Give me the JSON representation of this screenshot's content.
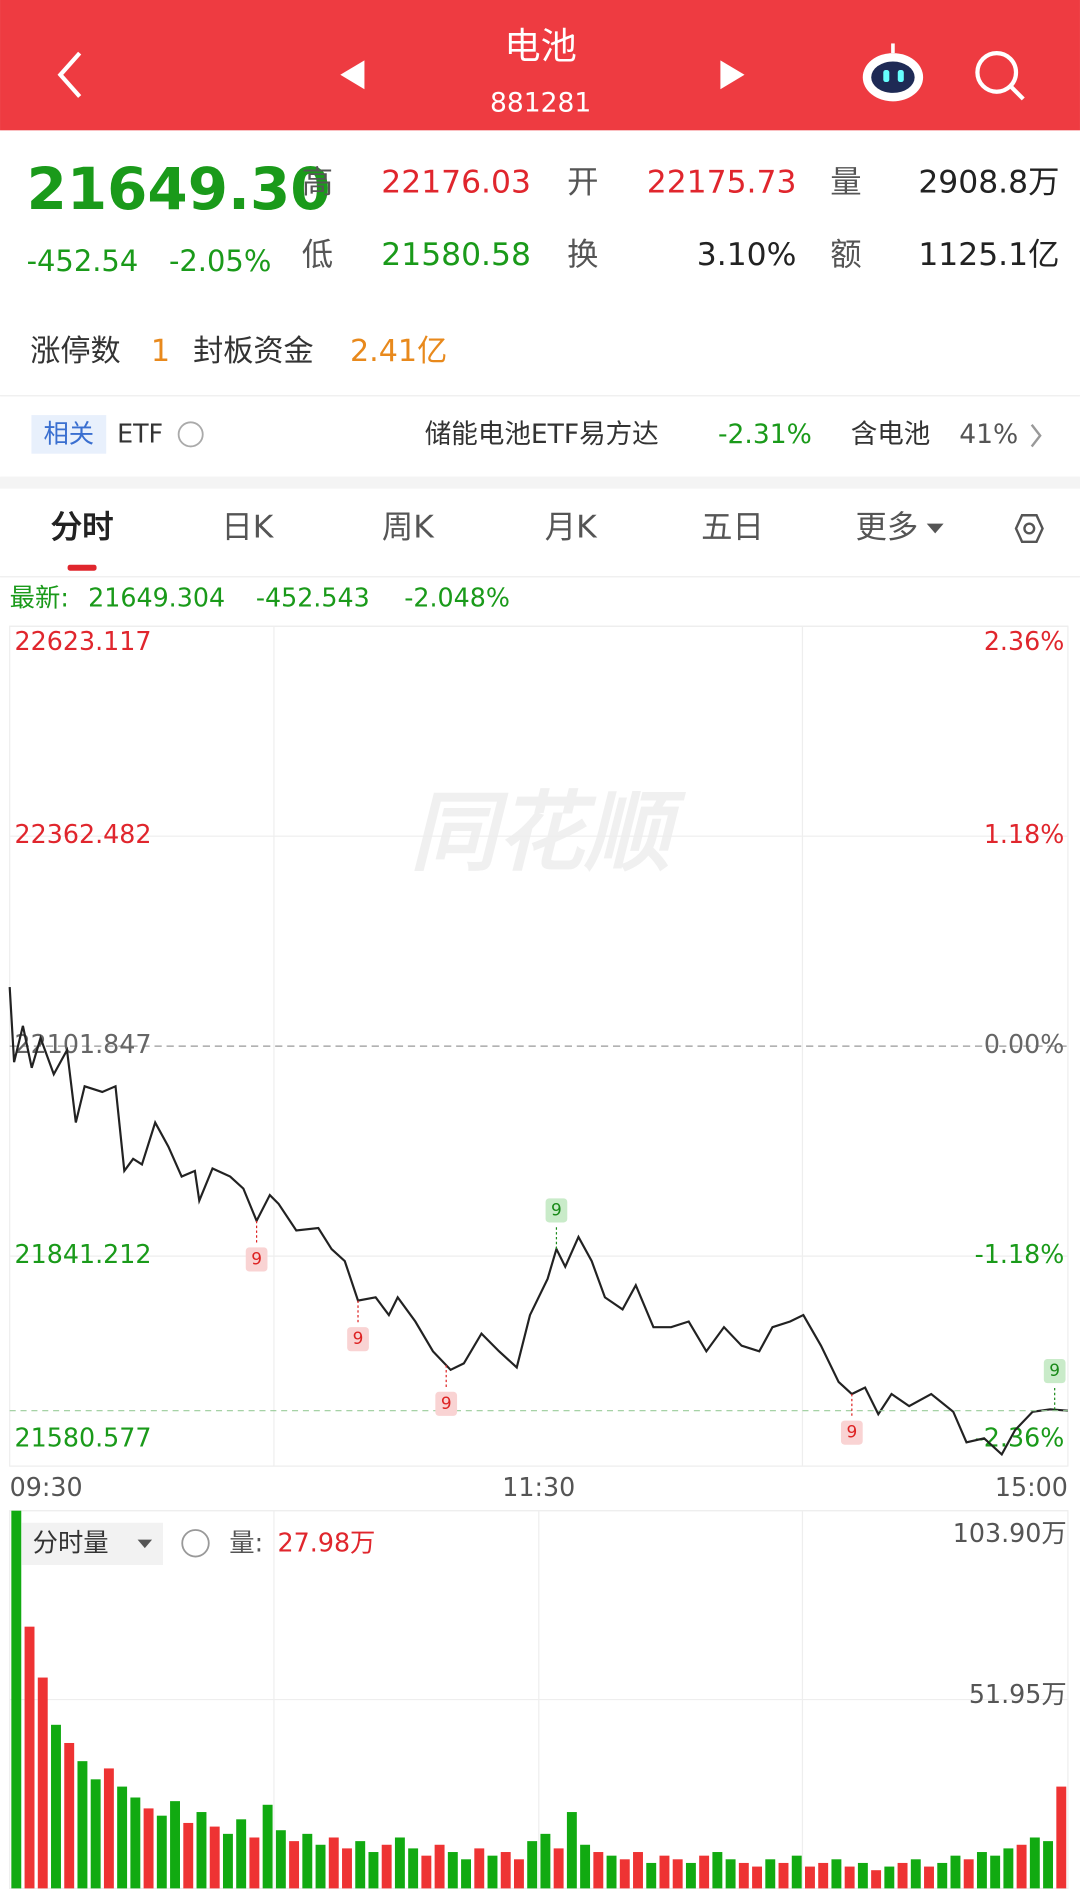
{
  "header": {
    "title": "电池",
    "code": "881281"
  },
  "quote": {
    "price": "21649.30",
    "change": "-452.54",
    "change_pct": "-2.05%",
    "high_label": "高",
    "high": "22176.03",
    "open_label": "开",
    "open": "22175.73",
    "volume_label": "量",
    "volume": "2908.8万",
    "low_label": "低",
    "low": "21580.58",
    "turnover_label": "换",
    "turnover": "3.10%",
    "amount_label": "额",
    "amount": "1125.1亿"
  },
  "limit_up": {
    "count_label": "涨停数",
    "count": "1",
    "funds_label": "封板资金",
    "funds": "2.41亿"
  },
  "etf": {
    "tag": "相关",
    "label": "ETF",
    "name": "储能电池ETF易方达",
    "change": "-2.31%",
    "holding_label": "含电池",
    "holding": "41%"
  },
  "tabs": [
    "分时",
    "日K",
    "周K",
    "月K",
    "五日",
    "更多"
  ],
  "latest": {
    "label": "最新:",
    "price": "21649.304",
    "change": "-452.543",
    "change_pct": "-2.048%"
  },
  "watermark": "同花顺",
  "chart_data": [
    {
      "type": "line",
      "x": [
        0,
        1,
        3,
        5,
        7,
        10,
        13,
        15,
        17,
        21,
        24,
        26,
        28,
        30,
        33,
        36,
        39,
        42,
        43,
        46,
        50,
        53,
        56,
        59,
        61,
        65,
        70,
        73,
        76,
        79,
        83,
        86,
        88,
        92,
        96,
        100,
        103,
        107,
        111,
        115,
        118,
        122,
        124,
        126,
        129,
        132,
        135,
        139,
        142,
        146,
        150,
        154,
        158,
        162,
        166,
        170,
        173,
        177,
        180,
        184,
        188,
        191,
        194,
        197,
        200,
        204,
        209,
        214,
        217,
        221,
        225,
        228,
        232,
        236,
        240
      ],
      "series": [
        {
          "color": "#222222",
          "values": [
            22175.2,
            22082,
            22127,
            22075,
            22112,
            22067,
            22097,
            22007,
            22052,
            22045,
            22052,
            21947,
            21962,
            21955,
            22007,
            21977,
            21940,
            21947,
            21910,
            21950,
            21940,
            21925,
            21885,
            21917,
            21906,
            21873,
            21876,
            21850,
            21835,
            21786,
            21790,
            21768,
            21790,
            21760,
            21723,
            21700,
            21708,
            21745,
            21723,
            21703,
            21768,
            21813,
            21850,
            21828,
            21865,
            21835,
            21790,
            21775,
            21805,
            21753,
            21753,
            21760,
            21723,
            21753,
            21730,
            21723,
            21753,
            21760,
            21768,
            21730,
            21685,
            21670,
            21678,
            21645,
            21670,
            21655,
            21670,
            21648,
            21610,
            21615,
            21595,
            21625,
            21648,
            21651,
            21649.304
          ]
        }
      ],
      "xlim": [
        0,
        240
      ],
      "xticks": [
        {
          "value": 0,
          "label": "09:30"
        },
        {
          "value": 120,
          "label": "11:30"
        },
        {
          "value": 240,
          "label": "15:00"
        }
      ],
      "ylim": [
        21580.577,
        22623.117
      ],
      "yticks": [
        22623.117,
        22362.482,
        22101.847,
        21841.212,
        21580.577
      ],
      "y2lim": [
        -2.36,
        2.36
      ],
      "y2ticks": [
        {
          "value": 2.36,
          "label": "2.36%"
        },
        {
          "value": 1.18,
          "label": "1.18%"
        },
        {
          "value": 0,
          "label": "0.00%"
        },
        {
          "value": -1.18,
          "label": "-1.18%"
        },
        {
          "value": -2.36,
          "label": "-2.36%"
        }
      ],
      "signals": {
        "label": "9",
        "down": [
          56,
          79,
          99,
          191
        ],
        "up": [
          124,
          237
        ]
      }
    },
    {
      "type": "bar",
      "selector": "分时量",
      "volume_label": "量:",
      "volume_value": "27.98万",
      "x": [
        0,
        3,
        6,
        9,
        12,
        15,
        18,
        21,
        24,
        27,
        30,
        33,
        36,
        39,
        42,
        45,
        48,
        51,
        54,
        57,
        60,
        63,
        66,
        69,
        72,
        75,
        78,
        81,
        84,
        87,
        90,
        93,
        96,
        99,
        102,
        105,
        108,
        111,
        114,
        117,
        120,
        123,
        126,
        129,
        132,
        135,
        138,
        141,
        144,
        147,
        150,
        153,
        156,
        159,
        162,
        165,
        168,
        171,
        174,
        177,
        180,
        183,
        186,
        189,
        192,
        195,
        198,
        201,
        204,
        207,
        210,
        213,
        216,
        219,
        222,
        225,
        228,
        231,
        234,
        237
      ],
      "values": [
        103.9,
        72,
        58,
        45,
        40,
        35,
        30,
        33,
        28,
        25,
        22,
        20,
        24,
        18,
        21,
        17,
        15,
        19,
        14,
        23,
        16,
        13,
        15,
        12,
        14,
        11,
        13,
        10,
        12,
        14,
        11,
        9,
        12,
        10,
        8,
        11,
        9,
        10,
        8,
        13,
        15,
        11,
        21,
        12,
        10,
        9,
        8,
        10,
        7,
        9,
        8,
        7,
        9,
        10,
        8,
        7,
        6,
        8,
        7,
        9,
        6,
        7,
        8,
        6,
        7,
        5,
        6,
        7,
        8,
        6,
        7,
        9,
        8,
        10,
        9,
        11,
        12,
        14,
        13,
        28
      ],
      "colors": [
        "#1a1",
        "#e33",
        "#e33",
        "#1a1",
        "#e33",
        "#1a1",
        "#1a1",
        "#e33",
        "#1a1",
        "#1a1",
        "#e33",
        "#1a1",
        "#1a1",
        "#e33",
        "#1a1",
        "#e33",
        "#1a1",
        "#1a1",
        "#e33",
        "#1a1",
        "#1a1",
        "#e33",
        "#1a1",
        "#1a1",
        "#e33",
        "#e33",
        "#1a1",
        "#1a1",
        "#e33",
        "#1a1",
        "#1a1",
        "#e33",
        "#e33",
        "#1a1",
        "#1a1",
        "#e33",
        "#1a1",
        "#e33",
        "#e33",
        "#1a1",
        "#1a1",
        "#e33",
        "#1a1",
        "#1a1",
        "#e33",
        "#1a1",
        "#e33",
        "#e33",
        "#1a1",
        "#e33",
        "#e33",
        "#1a1",
        "#e33",
        "#1a1",
        "#1a1",
        "#e33",
        "#e33",
        "#1a1",
        "#e33",
        "#1a1",
        "#e33",
        "#e33",
        "#1a1",
        "#e33",
        "#1a1",
        "#e33",
        "#1a1",
        "#e33",
        "#1a1",
        "#e33",
        "#1a1",
        "#1a1",
        "#e33",
        "#1a1",
        "#1a1",
        "#1a1",
        "#e33",
        "#1a1",
        "#1a1",
        "#e33"
      ],
      "xlim": [
        0,
        240
      ],
      "ylim": [
        0,
        103.9
      ],
      "yticks": [
        {
          "value": 103.9,
          "label": "103.90万"
        },
        {
          "value": 51.95,
          "label": "51.95万"
        }
      ]
    }
  ]
}
